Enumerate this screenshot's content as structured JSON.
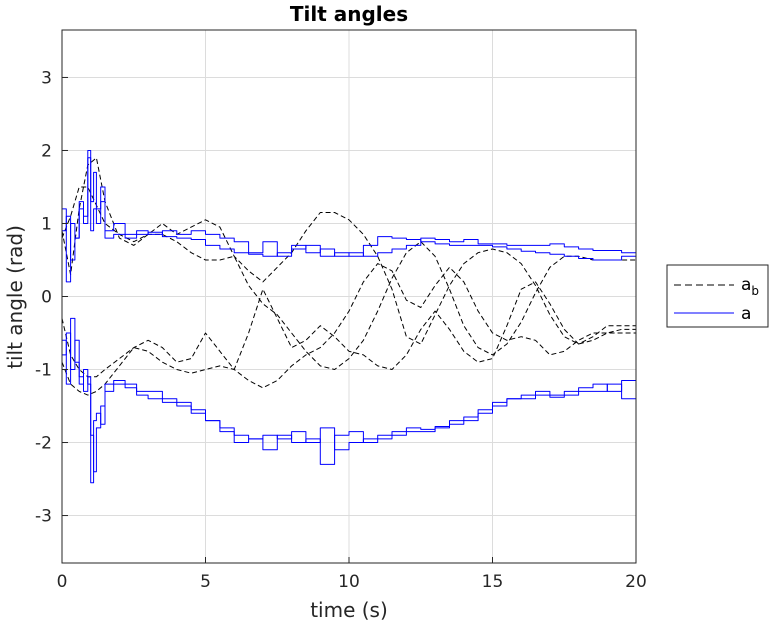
{
  "chart_data": {
    "type": "line",
    "title": "Tilt angles",
    "xlabel": "time (s)",
    "ylabel": "tilt angle (rad)",
    "xlim": [
      0,
      20
    ],
    "ylim": [
      -3.65,
      3.65
    ],
    "xticks": [
      0,
      5,
      10,
      15,
      20
    ],
    "yticks": [
      -3,
      -2,
      -1,
      0,
      1,
      2,
      3
    ],
    "xtick_labels": [
      "0",
      "5",
      "10",
      "15",
      "20"
    ],
    "ytick_labels": [
      "-3",
      "-2",
      "-1",
      "0",
      "1",
      "2",
      "3"
    ],
    "grid": true,
    "legend": {
      "placement": "outside-right",
      "entries": [
        {
          "text": "a",
          "subscript": "b",
          "style": "dashed",
          "color": "#000000"
        },
        {
          "text": "a",
          "subscript": "",
          "style": "solid",
          "color": "#0000ff"
        }
      ]
    },
    "series": [
      {
        "group": "a_b",
        "color": "#000000",
        "dash": true,
        "x": [
          0,
          0.3,
          0.6,
          0.9,
          1.2,
          1.5,
          2,
          2.5,
          3,
          3.5,
          4,
          4.5,
          5,
          5.5,
          6,
          6.5,
          7,
          7.5,
          8,
          8.5,
          9,
          9.5,
          10,
          10.5,
          11,
          11.5,
          12,
          12.5,
          13,
          13.5,
          14,
          14.5,
          15,
          15.5,
          16,
          16.5,
          17,
          17.5,
          18,
          18.5,
          19,
          19.5,
          20
        ],
        "y": [
          0.9,
          0.3,
          1.2,
          1.8,
          1.9,
          1.3,
          0.8,
          0.7,
          0.85,
          1.0,
          0.85,
          0.95,
          1.05,
          0.95,
          0.55,
          0.35,
          0.2,
          0.4,
          0.6,
          0.9,
          1.15,
          1.15,
          1.05,
          0.85,
          0.55,
          0.1,
          -0.55,
          -0.65,
          -0.25,
          0.15,
          0.45,
          0.6,
          0.65,
          0.6,
          0.45,
          0.15,
          -0.25,
          -0.55,
          -0.65,
          -0.6,
          -0.5,
          -0.45,
          -0.45
        ]
      },
      {
        "group": "a_b",
        "color": "#000000",
        "dash": true,
        "x": [
          0,
          0.3,
          0.6,
          0.9,
          1.2,
          1.5,
          2,
          2.5,
          3,
          3.5,
          4,
          4.5,
          5,
          5.5,
          6,
          6.5,
          7,
          7.5,
          8,
          8.5,
          9,
          9.5,
          10,
          10.5,
          11,
          11.5,
          12,
          12.5,
          13,
          13.5,
          14,
          14.5,
          15,
          15.5,
          16,
          16.5,
          17,
          17.5,
          18,
          18.5,
          19,
          19.5,
          20
        ],
        "y": [
          0.8,
          1.1,
          1.5,
          1.5,
          1.25,
          1.0,
          0.85,
          0.75,
          0.85,
          0.85,
          0.75,
          0.6,
          0.5,
          0.5,
          0.55,
          0.15,
          -0.1,
          -0.25,
          -0.5,
          -0.75,
          -0.95,
          -1.0,
          -0.85,
          -0.6,
          -0.2,
          0.25,
          0.6,
          0.75,
          0.55,
          0.1,
          -0.4,
          -0.7,
          -0.8,
          -0.65,
          -0.35,
          0.05,
          0.4,
          0.55,
          0.55,
          0.5,
          0.5,
          0.5,
          0.5
        ]
      },
      {
        "group": "a_b",
        "color": "#000000",
        "dash": true,
        "x": [
          0,
          0.3,
          0.6,
          0.9,
          1.2,
          1.5,
          2,
          2.5,
          3,
          3.5,
          4,
          4.5,
          5,
          5.5,
          6,
          6.5,
          7,
          7.5,
          8,
          8.5,
          9,
          9.5,
          10,
          10.5,
          11,
          11.5,
          12,
          12.5,
          13,
          13.5,
          14,
          14.5,
          15,
          15.5,
          16,
          16.5,
          17,
          17.5,
          18,
          18.5,
          19,
          19.5,
          20
        ],
        "y": [
          -0.3,
          -0.8,
          -1.0,
          -1.1,
          -1.1,
          -1.0,
          -0.85,
          -0.7,
          -0.6,
          -0.7,
          -0.9,
          -0.85,
          -0.5,
          -0.75,
          -1.0,
          -0.5,
          0.1,
          -0.3,
          -0.7,
          -0.6,
          -0.4,
          -0.55,
          -0.75,
          -0.8,
          -0.95,
          -1.0,
          -0.8,
          -0.45,
          -0.2,
          -0.45,
          -0.75,
          -0.9,
          -0.85,
          -0.4,
          0.1,
          0.2,
          -0.1,
          -0.45,
          -0.65,
          -0.55,
          -0.4,
          -0.4,
          -0.4
        ]
      },
      {
        "group": "a_b",
        "color": "#000000",
        "dash": true,
        "x": [
          0,
          0.3,
          0.6,
          0.9,
          1.2,
          1.5,
          2,
          2.5,
          3,
          3.5,
          4,
          4.5,
          5,
          5.5,
          6,
          6.5,
          7,
          7.5,
          8,
          8.5,
          9,
          9.5,
          10,
          10.5,
          11,
          11.5,
          12,
          12.5,
          13,
          13.5,
          14,
          14.5,
          15,
          15.5,
          16,
          16.5,
          17,
          17.5,
          18,
          18.5,
          19,
          19.5,
          20
        ],
        "y": [
          -0.9,
          -1.2,
          -1.3,
          -1.35,
          -1.3,
          -1.2,
          -0.95,
          -0.7,
          -0.75,
          -0.9,
          -1.0,
          -1.05,
          -1.0,
          -0.95,
          -1.0,
          -1.15,
          -1.25,
          -1.15,
          -0.95,
          -0.8,
          -0.7,
          -0.5,
          -0.2,
          0.2,
          0.45,
          0.35,
          -0.05,
          -0.15,
          0.15,
          0.4,
          0.2,
          -0.2,
          -0.5,
          -0.6,
          -0.55,
          -0.6,
          -0.8,
          -0.75,
          -0.6,
          -0.5,
          -0.5,
          -0.5,
          -0.5
        ]
      },
      {
        "group": "a",
        "color": "#0000ff",
        "dash": false,
        "x": [
          0,
          0.15,
          0.3,
          0.45,
          0.6,
          0.75,
          0.9,
          1.0,
          1.1,
          1.2,
          1.35,
          1.5,
          1.8,
          2.2,
          2.6,
          3,
          3.5,
          4,
          4.5,
          5,
          5.5,
          6,
          6.5,
          7,
          7.5,
          8,
          8.5,
          9,
          9.5,
          10,
          10.5,
          11,
          11.5,
          12,
          12.5,
          13,
          13.5,
          14,
          14.5,
          15,
          15.5,
          16,
          16.5,
          17,
          17.5,
          18,
          18.5,
          19,
          19.5,
          20
        ],
        "y": [
          1.2,
          0.2,
          1.0,
          0.8,
          1.3,
          1.1,
          1.9,
          1.3,
          1.7,
          1.2,
          1.5,
          0.9,
          1.0,
          0.85,
          0.9,
          0.85,
          0.9,
          0.85,
          0.9,
          0.85,
          0.8,
          0.75,
          0.6,
          0.75,
          0.55,
          0.7,
          0.6,
          0.65,
          0.55,
          0.6,
          0.55,
          0.6,
          0.65,
          0.7,
          0.8,
          0.78,
          0.75,
          0.78,
          0.72,
          0.72,
          0.7,
          0.7,
          0.7,
          0.72,
          0.68,
          0.65,
          0.63,
          0.63,
          0.6,
          0.7
        ]
      },
      {
        "group": "a",
        "color": "#0000ff",
        "dash": false,
        "x": [
          0,
          0.15,
          0.3,
          0.45,
          0.6,
          0.75,
          0.9,
          1.0,
          1.1,
          1.2,
          1.35,
          1.5,
          1.8,
          2.2,
          2.6,
          3,
          3.5,
          4,
          4.5,
          5,
          5.5,
          6,
          6.5,
          7,
          7.5,
          8,
          8.5,
          9,
          9.5,
          10,
          10.5,
          11,
          11.5,
          12,
          12.5,
          13,
          13.5,
          14,
          14.5,
          15,
          15.5,
          16,
          16.5,
          17,
          17.5,
          18,
          18.5,
          19,
          19.5,
          20
        ],
        "y": [
          0.9,
          1.1,
          0.5,
          0.8,
          1.2,
          1.0,
          2.0,
          0.9,
          1.2,
          1.0,
          1.3,
          0.8,
          0.85,
          0.8,
          0.85,
          0.88,
          0.82,
          0.8,
          0.78,
          0.7,
          0.65,
          0.6,
          0.58,
          0.55,
          0.6,
          0.65,
          0.7,
          0.55,
          0.6,
          0.55,
          0.7,
          0.82,
          0.8,
          0.78,
          0.75,
          0.72,
          0.7,
          0.7,
          0.7,
          0.68,
          0.65,
          0.62,
          0.6,
          0.58,
          0.55,
          0.52,
          0.5,
          0.5,
          0.55,
          0.7
        ]
      },
      {
        "group": "a",
        "color": "#0000ff",
        "dash": false,
        "x": [
          0,
          0.15,
          0.3,
          0.45,
          0.6,
          0.75,
          0.9,
          1.0,
          1.1,
          1.2,
          1.35,
          1.5,
          1.8,
          2.2,
          2.6,
          3,
          3.5,
          4,
          4.5,
          5,
          5.5,
          6,
          6.5,
          7,
          7.5,
          8,
          8.5,
          9,
          9.5,
          10,
          10.5,
          11,
          11.5,
          12,
          12.5,
          13,
          13.5,
          14,
          14.5,
          15,
          15.5,
          16,
          16.5,
          17,
          17.5,
          18,
          18.5,
          19,
          19.5,
          20
        ],
        "y": [
          -0.6,
          -1.2,
          -0.3,
          -0.9,
          -1.1,
          -1.3,
          -1.1,
          -2.55,
          -1.7,
          -1.6,
          -1.75,
          -1.3,
          -1.15,
          -1.2,
          -1.3,
          -1.3,
          -1.4,
          -1.45,
          -1.55,
          -1.7,
          -1.8,
          -1.9,
          -1.95,
          -1.9,
          -1.95,
          -1.85,
          -2.0,
          -1.8,
          -2.1,
          -2.0,
          -1.95,
          -1.95,
          -1.9,
          -1.85,
          -1.85,
          -1.8,
          -1.75,
          -1.7,
          -1.6,
          -1.5,
          -1.4,
          -1.35,
          -1.3,
          -1.35,
          -1.3,
          -1.25,
          -1.2,
          -1.3,
          -1.15,
          -1.5
        ]
      },
      {
        "group": "a",
        "color": "#0000ff",
        "dash": false,
        "x": [
          0,
          0.15,
          0.3,
          0.45,
          0.6,
          0.75,
          0.9,
          1.0,
          1.1,
          1.2,
          1.35,
          1.5,
          1.8,
          2.2,
          2.6,
          3,
          3.5,
          4,
          4.5,
          5,
          5.5,
          6,
          6.5,
          7,
          7.5,
          8,
          8.5,
          9,
          9.5,
          10,
          10.5,
          11,
          11.5,
          12,
          12.5,
          13,
          13.5,
          14,
          14.5,
          15,
          15.5,
          16,
          16.5,
          17,
          17.5,
          18,
          18.5,
          19,
          19.5,
          20
        ],
        "y": [
          -0.8,
          -0.5,
          -1.0,
          -0.6,
          -1.2,
          -1.0,
          -1.2,
          -1.9,
          -2.4,
          -1.8,
          -1.5,
          -1.2,
          -1.2,
          -1.25,
          -1.35,
          -1.4,
          -1.45,
          -1.5,
          -1.6,
          -1.7,
          -1.85,
          -2.0,
          -1.95,
          -2.1,
          -1.9,
          -2.0,
          -1.95,
          -2.3,
          -1.9,
          -1.85,
          -2.0,
          -1.9,
          -1.85,
          -1.8,
          -1.82,
          -1.78,
          -1.7,
          -1.65,
          -1.55,
          -1.45,
          -1.4,
          -1.4,
          -1.35,
          -1.38,
          -1.35,
          -1.3,
          -1.3,
          -1.2,
          -1.4,
          -0.85
        ]
      }
    ]
  }
}
